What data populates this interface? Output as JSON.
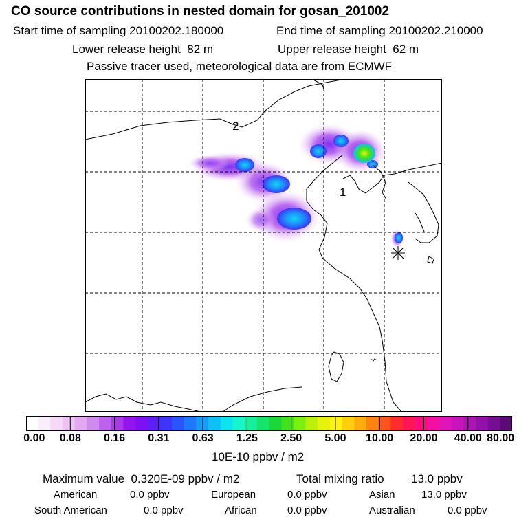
{
  "header": {
    "title": "CO  source contributions in nested domain for gosan_201002",
    "start_label": "Start time of sampling",
    "start_value": "20100202.180000",
    "end_label": "End time of sampling",
    "end_value": "20100202.210000",
    "lower_label": "Lower release height",
    "lower_value": "82 m",
    "upper_label": "Upper release height",
    "upper_value": "62 m",
    "note": "Passive tracer used, meteorological data are from ECMWF"
  },
  "map": {
    "labels": [
      "2",
      "1"
    ],
    "receptor_marker": "asterisk-icon"
  },
  "colorbar": {
    "ticks": [
      "0.00",
      "0.08",
      "0.16",
      "0.31",
      "0.63",
      "1.25",
      "2.50",
      "5.00",
      "10.00",
      "20.00",
      "40.00",
      "80.00"
    ],
    "unit": "10E-10 ppbv / m2",
    "colors": [
      "#ffffff",
      "#fbeefc",
      "#f6d9f8",
      "#efc2f4",
      "#e2a8f0",
      "#cf8aed",
      "#be62ee",
      "#aa38ec",
      "#9416ef",
      "#7c12f3",
      "#5d1ff7",
      "#3e34fa",
      "#2a55fb",
      "#1f78fb",
      "#169dfa",
      "#0fc0f7",
      "#0ee4ee",
      "#16f5cc",
      "#17ee9e",
      "#15e46a",
      "#1cd63a",
      "#40e317",
      "#7ef00e",
      "#baf00c",
      "#e6f20d",
      "#fff20f",
      "#ffcf10",
      "#ffac12",
      "#ff8313",
      "#ff5419",
      "#ff2b2c",
      "#ff1654",
      "#ff0d7f",
      "#f40ea3",
      "#df16b7",
      "#c814bd",
      "#ae14b5",
      "#9211a8",
      "#760e92",
      "#5b0a78"
    ]
  },
  "stats": {
    "max_label": "Maximum value",
    "max_value": "0.320E-09 ppbv / m2",
    "total_label": "Total mixing ratio",
    "total_value": "13.0 ppbv",
    "regions": [
      {
        "name": "American",
        "value": "0.0 ppbv"
      },
      {
        "name": "European",
        "value": "0.0 ppbv"
      },
      {
        "name": "Asian",
        "value": "13.0 ppbv"
      },
      {
        "name": "South American",
        "value": "0.0 ppbv"
      },
      {
        "name": "African",
        "value": "0.0 ppbv"
      },
      {
        "name": "Australian",
        "value": "0.0 ppbv"
      }
    ]
  }
}
